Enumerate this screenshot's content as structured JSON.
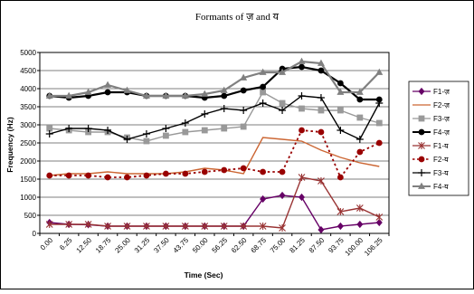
{
  "chart_data": {
    "type": "line",
    "title": "Formants of ज़ and य",
    "xlabel": "Time (Sec)",
    "ylabel": "Frequency (Hz)",
    "ylim": [
      0,
      5000
    ],
    "yticks": [
      "0",
      "500",
      "1000",
      "1500",
      "2000",
      "2500",
      "3000",
      "3500",
      "4000",
      "4500",
      "5000"
    ],
    "grid": "horizontal",
    "legend": "right",
    "x": [
      "0.00",
      "6.25",
      "12.50",
      "18.75",
      "25.00",
      "31.25",
      "37.50",
      "43.75",
      "50.00",
      "56.25",
      "62.50",
      "68.75",
      "75.00",
      "81.25",
      "87.50",
      "93.75",
      "100.00",
      "106.25"
    ],
    "series": [
      {
        "name": "F1-ज़",
        "color": "#660066",
        "marker": "diamond",
        "dash": "solid",
        "values": [
          300,
          250,
          240,
          200,
          200,
          200,
          200,
          200,
          200,
          200,
          200,
          950,
          1050,
          1000,
          100,
          200,
          250,
          300
        ]
      },
      {
        "name": "F2-ज़",
        "color": "#cc6633",
        "marker": "none",
        "dash": "solid",
        "values": [
          1600,
          1650,
          1650,
          1700,
          1650,
          1650,
          1650,
          1700,
          1800,
          1750,
          1650,
          2650,
          2600,
          2550,
          2300,
          2100,
          1950,
          1850
        ]
      },
      {
        "name": "F3-ज़",
        "color": "#999999",
        "marker": "square",
        "dash": "solid",
        "values": [
          2900,
          2850,
          2800,
          2800,
          2650,
          2550,
          2700,
          2800,
          2850,
          2900,
          2950,
          3900,
          3600,
          3450,
          3400,
          3400,
          3200,
          3050
        ]
      },
      {
        "name": "F4-ज़",
        "color": "#000000",
        "marker": "circle",
        "dash": "solid",
        "values": [
          3800,
          3750,
          3800,
          3900,
          3900,
          3800,
          3800,
          3800,
          3750,
          3800,
          3950,
          4050,
          4550,
          4600,
          4500,
          4150,
          3700,
          3700
        ]
      },
      {
        "name": "F1-य",
        "color": "#993333",
        "marker": "star",
        "dash": "solid",
        "values": [
          250,
          250,
          250,
          200,
          200,
          200,
          200,
          200,
          200,
          200,
          200,
          200,
          150,
          1550,
          1450,
          600,
          700,
          450
        ]
      },
      {
        "name": "F2-य",
        "color": "#990000",
        "marker": "circle",
        "dash": "dashed",
        "values": [
          1600,
          1600,
          1600,
          1550,
          1550,
          1600,
          1650,
          1650,
          1700,
          1750,
          1800,
          1700,
          1700,
          2850,
          2800,
          1550,
          2250,
          2500
        ]
      },
      {
        "name": "F3-य",
        "color": "#000000",
        "marker": "plus",
        "dash": "solid",
        "values": [
          2750,
          2900,
          2900,
          2850,
          2600,
          2750,
          2900,
          3050,
          3300,
          3450,
          3400,
          3600,
          3400,
          3800,
          3750,
          2850,
          2600,
          3600
        ]
      },
      {
        "name": "F4-य",
        "color": "#808080",
        "marker": "triangle",
        "dash": "solid",
        "values": [
          3800,
          3800,
          3900,
          4100,
          3950,
          3800,
          3800,
          3800,
          3850,
          3950,
          4300,
          4450,
          4450,
          4750,
          4700,
          3900,
          3900,
          4450
        ]
      }
    ]
  }
}
